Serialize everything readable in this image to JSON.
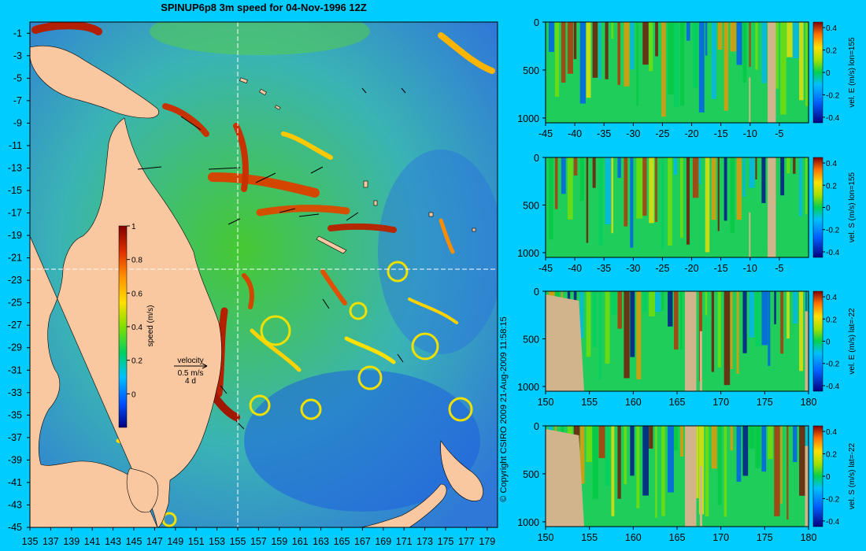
{
  "title": "SPINUP6p8 3m speed for 04-Nov-1996 12Z",
  "copyright": "© Copyright CSIRO 2009   21-Aug-2009 11:58:15",
  "colors": {
    "background": "#00ccff",
    "land": "#f9c7a0",
    "section_land": "#d2b48c",
    "section_line": "#ffffff"
  },
  "chart_data": [
    {
      "type": "heatmap",
      "name": "map",
      "title": "SPINUP6p8 3m speed for 04-Nov-1996 12Z",
      "x_ticks": [
        135,
        137,
        139,
        141,
        143,
        145,
        147,
        149,
        151,
        153,
        155,
        157,
        159,
        161,
        163,
        165,
        167,
        169,
        171,
        173,
        175,
        177,
        179
      ],
      "y_ticks": [
        -1,
        -3,
        -5,
        -7,
        -9,
        -11,
        -13,
        -15,
        -17,
        -19,
        -21,
        -23,
        -25,
        -27,
        -29,
        -31,
        -33,
        -35,
        -37,
        -39,
        -41,
        -43,
        -45
      ],
      "xlim": [
        135,
        180
      ],
      "ylim": [
        -45,
        0
      ],
      "section_lines": {
        "lon": 155,
        "lat": -22
      },
      "colorbar": {
        "label": "speed (m/s)",
        "ticks": [
          0,
          0.2,
          0.4,
          0.6,
          0.8,
          1
        ],
        "range": [
          -0.2,
          1
        ]
      },
      "velocity_legend": {
        "title": "velocity",
        "speed": "0.5 m/s",
        "duration": "4 d"
      }
    },
    {
      "type": "heatmap",
      "name": "section-1",
      "x_ticks": [
        -45,
        -40,
        -35,
        -30,
        -25,
        -20,
        -15,
        -10,
        -5
      ],
      "y_ticks": [
        0,
        500,
        1000
      ],
      "xlim": [
        -45,
        0
      ],
      "ylim": [
        1050,
        0
      ],
      "colorbar": {
        "label": "vel. E (m/s) lon=155",
        "ticks": [
          0.4,
          0.2,
          0,
          -0.2,
          -0.4
        ]
      }
    },
    {
      "type": "heatmap",
      "name": "section-2",
      "x_ticks": [
        -45,
        -40,
        -35,
        -30,
        -25,
        -20,
        -15,
        -10,
        -5
      ],
      "y_ticks": [
        0,
        500,
        1000
      ],
      "xlim": [
        -45,
        0
      ],
      "ylim": [
        1050,
        0
      ],
      "colorbar": {
        "label": "vel. S (m/s) lon=155",
        "ticks": [
          0.4,
          0.2,
          0,
          -0.2,
          -0.4
        ]
      }
    },
    {
      "type": "heatmap",
      "name": "section-3",
      "x_ticks": [
        150,
        155,
        160,
        165,
        170,
        175,
        180
      ],
      "y_ticks": [
        0,
        500,
        1000
      ],
      "xlim": [
        150,
        180
      ],
      "ylim": [
        1050,
        0
      ],
      "colorbar": {
        "label": "vel. E (m/s) lat=-22",
        "ticks": [
          0.4,
          0.2,
          0,
          -0.2,
          -0.4
        ]
      }
    },
    {
      "type": "heatmap",
      "name": "section-4",
      "x_ticks": [
        150,
        155,
        160,
        165,
        170,
        175,
        180
      ],
      "y_ticks": [
        0,
        500,
        1000
      ],
      "xlim": [
        150,
        180
      ],
      "ylim": [
        1050,
        0
      ],
      "colorbar": {
        "label": "vel. S (m/s) lat=-22",
        "ticks": [
          0.4,
          0.2,
          0,
          -0.2,
          -0.4
        ]
      }
    }
  ]
}
